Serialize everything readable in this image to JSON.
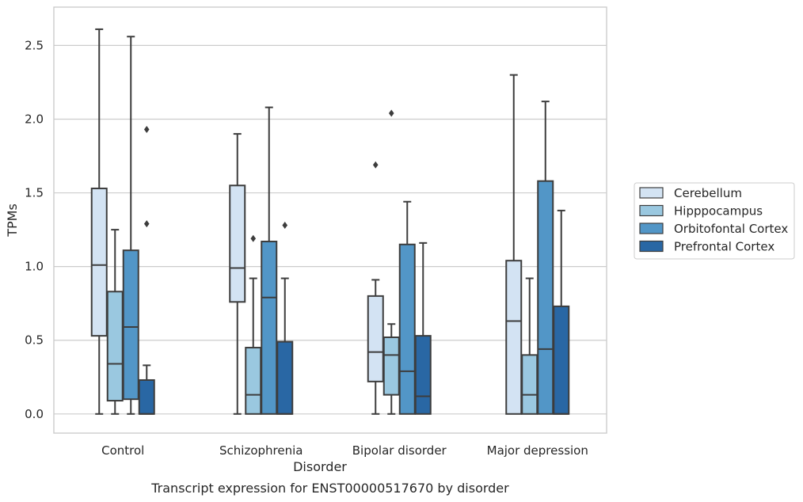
{
  "chart_data": {
    "type": "box",
    "xlabel": "Disorder",
    "ylabel": "TPMs",
    "caption": "Transcript expression for ENST00000517670 by disorder",
    "ylim": [
      -0.13,
      2.76
    ],
    "yticks": [
      "0.0",
      "0.5",
      "1.0",
      "1.5",
      "2.0",
      "2.5"
    ],
    "grid": "horizontal",
    "legend_position": "right",
    "categories": [
      "Control",
      "Schizophrenia",
      "Bipolar disorder",
      "Major depression"
    ],
    "series": [
      {
        "name": "Cerebellum",
        "color": "#d3e3f3",
        "boxes": [
          {
            "whisker_low": 0.0,
            "q1": 0.53,
            "median": 1.01,
            "q3": 1.53,
            "whisker_high": 2.61,
            "outliers": []
          },
          {
            "whisker_low": 0.0,
            "q1": 0.76,
            "median": 0.99,
            "q3": 1.55,
            "whisker_high": 1.9,
            "outliers": []
          },
          {
            "whisker_low": 0.0,
            "q1": 0.22,
            "median": 0.42,
            "q3": 0.8,
            "whisker_high": 0.91,
            "outliers": [
              1.69
            ]
          },
          {
            "whisker_low": 0.0,
            "q1": 0.0,
            "median": 0.63,
            "q3": 1.04,
            "whisker_high": 2.3,
            "outliers": []
          }
        ]
      },
      {
        "name": "Hipppocampus",
        "color": "#9ac8e0",
        "boxes": [
          {
            "whisker_low": 0.0,
            "q1": 0.09,
            "median": 0.34,
            "q3": 0.83,
            "whisker_high": 1.25,
            "outliers": []
          },
          {
            "whisker_low": 0.0,
            "q1": 0.0,
            "median": 0.13,
            "q3": 0.45,
            "whisker_high": 0.92,
            "outliers": [
              1.19
            ]
          },
          {
            "whisker_low": 0.0,
            "q1": 0.13,
            "median": 0.4,
            "q3": 0.52,
            "whisker_high": 0.61,
            "outliers": [
              2.04
            ]
          },
          {
            "whisker_low": 0.0,
            "q1": 0.0,
            "median": 0.13,
            "q3": 0.4,
            "whisker_high": 0.92,
            "outliers": []
          }
        ]
      },
      {
        "name": "Orbitofontal Cortex",
        "color": "#5296c7",
        "boxes": [
          {
            "whisker_low": 0.0,
            "q1": 0.1,
            "median": 0.59,
            "q3": 1.11,
            "whisker_high": 2.56,
            "outliers": []
          },
          {
            "whisker_low": 0.0,
            "q1": 0.0,
            "median": 0.79,
            "q3": 1.17,
            "whisker_high": 2.08,
            "outliers": []
          },
          {
            "whisker_low": 0.0,
            "q1": 0.0,
            "median": 0.29,
            "q3": 1.15,
            "whisker_high": 1.44,
            "outliers": []
          },
          {
            "whisker_low": 0.0,
            "q1": 0.0,
            "median": 0.44,
            "q3": 1.58,
            "whisker_high": 2.12,
            "outliers": []
          }
        ]
      },
      {
        "name": "Prefrontal Cortex",
        "color": "#2967a4",
        "boxes": [
          {
            "whisker_low": 0.0,
            "q1": 0.0,
            "median": 0.0,
            "q3": 0.23,
            "whisker_high": 0.33,
            "outliers": [
              1.29,
              1.93
            ]
          },
          {
            "whisker_low": 0.0,
            "q1": 0.0,
            "median": 0.0,
            "q3": 0.49,
            "whisker_high": 0.92,
            "outliers": [
              1.28
            ]
          },
          {
            "whisker_low": 0.0,
            "q1": 0.0,
            "median": 0.12,
            "q3": 0.53,
            "whisker_high": 1.16,
            "outliers": []
          },
          {
            "whisker_low": 0.0,
            "q1": 0.0,
            "median": 0.0,
            "q3": 0.73,
            "whisker_high": 1.38,
            "outliers": []
          }
        ]
      }
    ]
  }
}
